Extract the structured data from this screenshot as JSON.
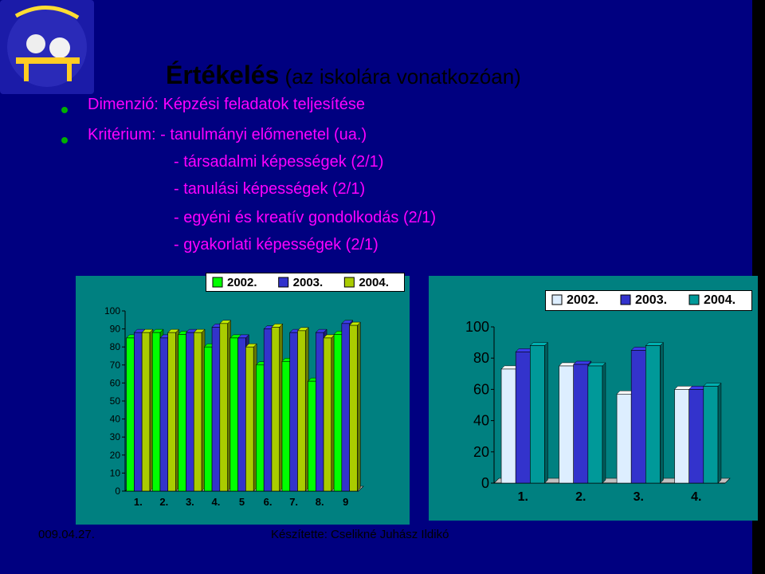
{
  "title": {
    "bold": "Értékelés",
    "rest": " (az iskolára vonatkozóan)"
  },
  "bullets": [
    "Dimenzió: Képzési feladatok teljesítése",
    "Kritérium: - tanulmányi előmenetel    (ua.)"
  ],
  "sub_items": [
    "- társadalmi képességek  (2/1)",
    "- tanulási képességek      (2/1)",
    "- egyéni és kreatív gondolkodás (2/1)",
    "- gyakorlati képességek   (2/1)"
  ],
  "colors": {
    "bullet": "#00b000",
    "text": "#cc00cc",
    "y2002": "#00ff00",
    "y2003": "#3333cc",
    "y2004": "#aacc00"
  },
  "chart_data": [
    {
      "type": "bar",
      "categories": [
        "1.",
        "2.",
        "3.",
        "4.",
        "5",
        "6.",
        "7.",
        "8.",
        "9"
      ],
      "series": [
        {
          "name": "2002.",
          "values": [
            85,
            88,
            87,
            80,
            85,
            70,
            72,
            61,
            87
          ]
        },
        {
          "name": "2003.",
          "values": [
            88,
            85,
            88,
            91,
            85,
            90,
            88,
            88,
            93
          ]
        },
        {
          "name": "2004.",
          "values": [
            88,
            88,
            88,
            93,
            80,
            91,
            89,
            85,
            92
          ]
        }
      ],
      "ylim": [
        0,
        100
      ],
      "yticks": [
        0,
        10,
        20,
        30,
        40,
        50,
        60,
        70,
        80,
        90,
        100
      ],
      "legend": "top"
    },
    {
      "type": "bar",
      "categories": [
        "1.",
        "2.",
        "3.",
        "4."
      ],
      "series": [
        {
          "name": "2002.",
          "values": [
            73,
            75,
            57,
            60
          ]
        },
        {
          "name": "2003.",
          "values": [
            84,
            76,
            85,
            60
          ]
        },
        {
          "name": "2004.",
          "values": [
            88,
            75,
            88,
            62
          ]
        }
      ],
      "ylim": [
        0,
        100
      ],
      "yticks": [
        0,
        20,
        40,
        60,
        80,
        100
      ],
      "legend": "top"
    }
  ],
  "footer": {
    "date": "009.04.27.",
    "author": "Készítette: Cselikné Juhász Ildikó"
  }
}
